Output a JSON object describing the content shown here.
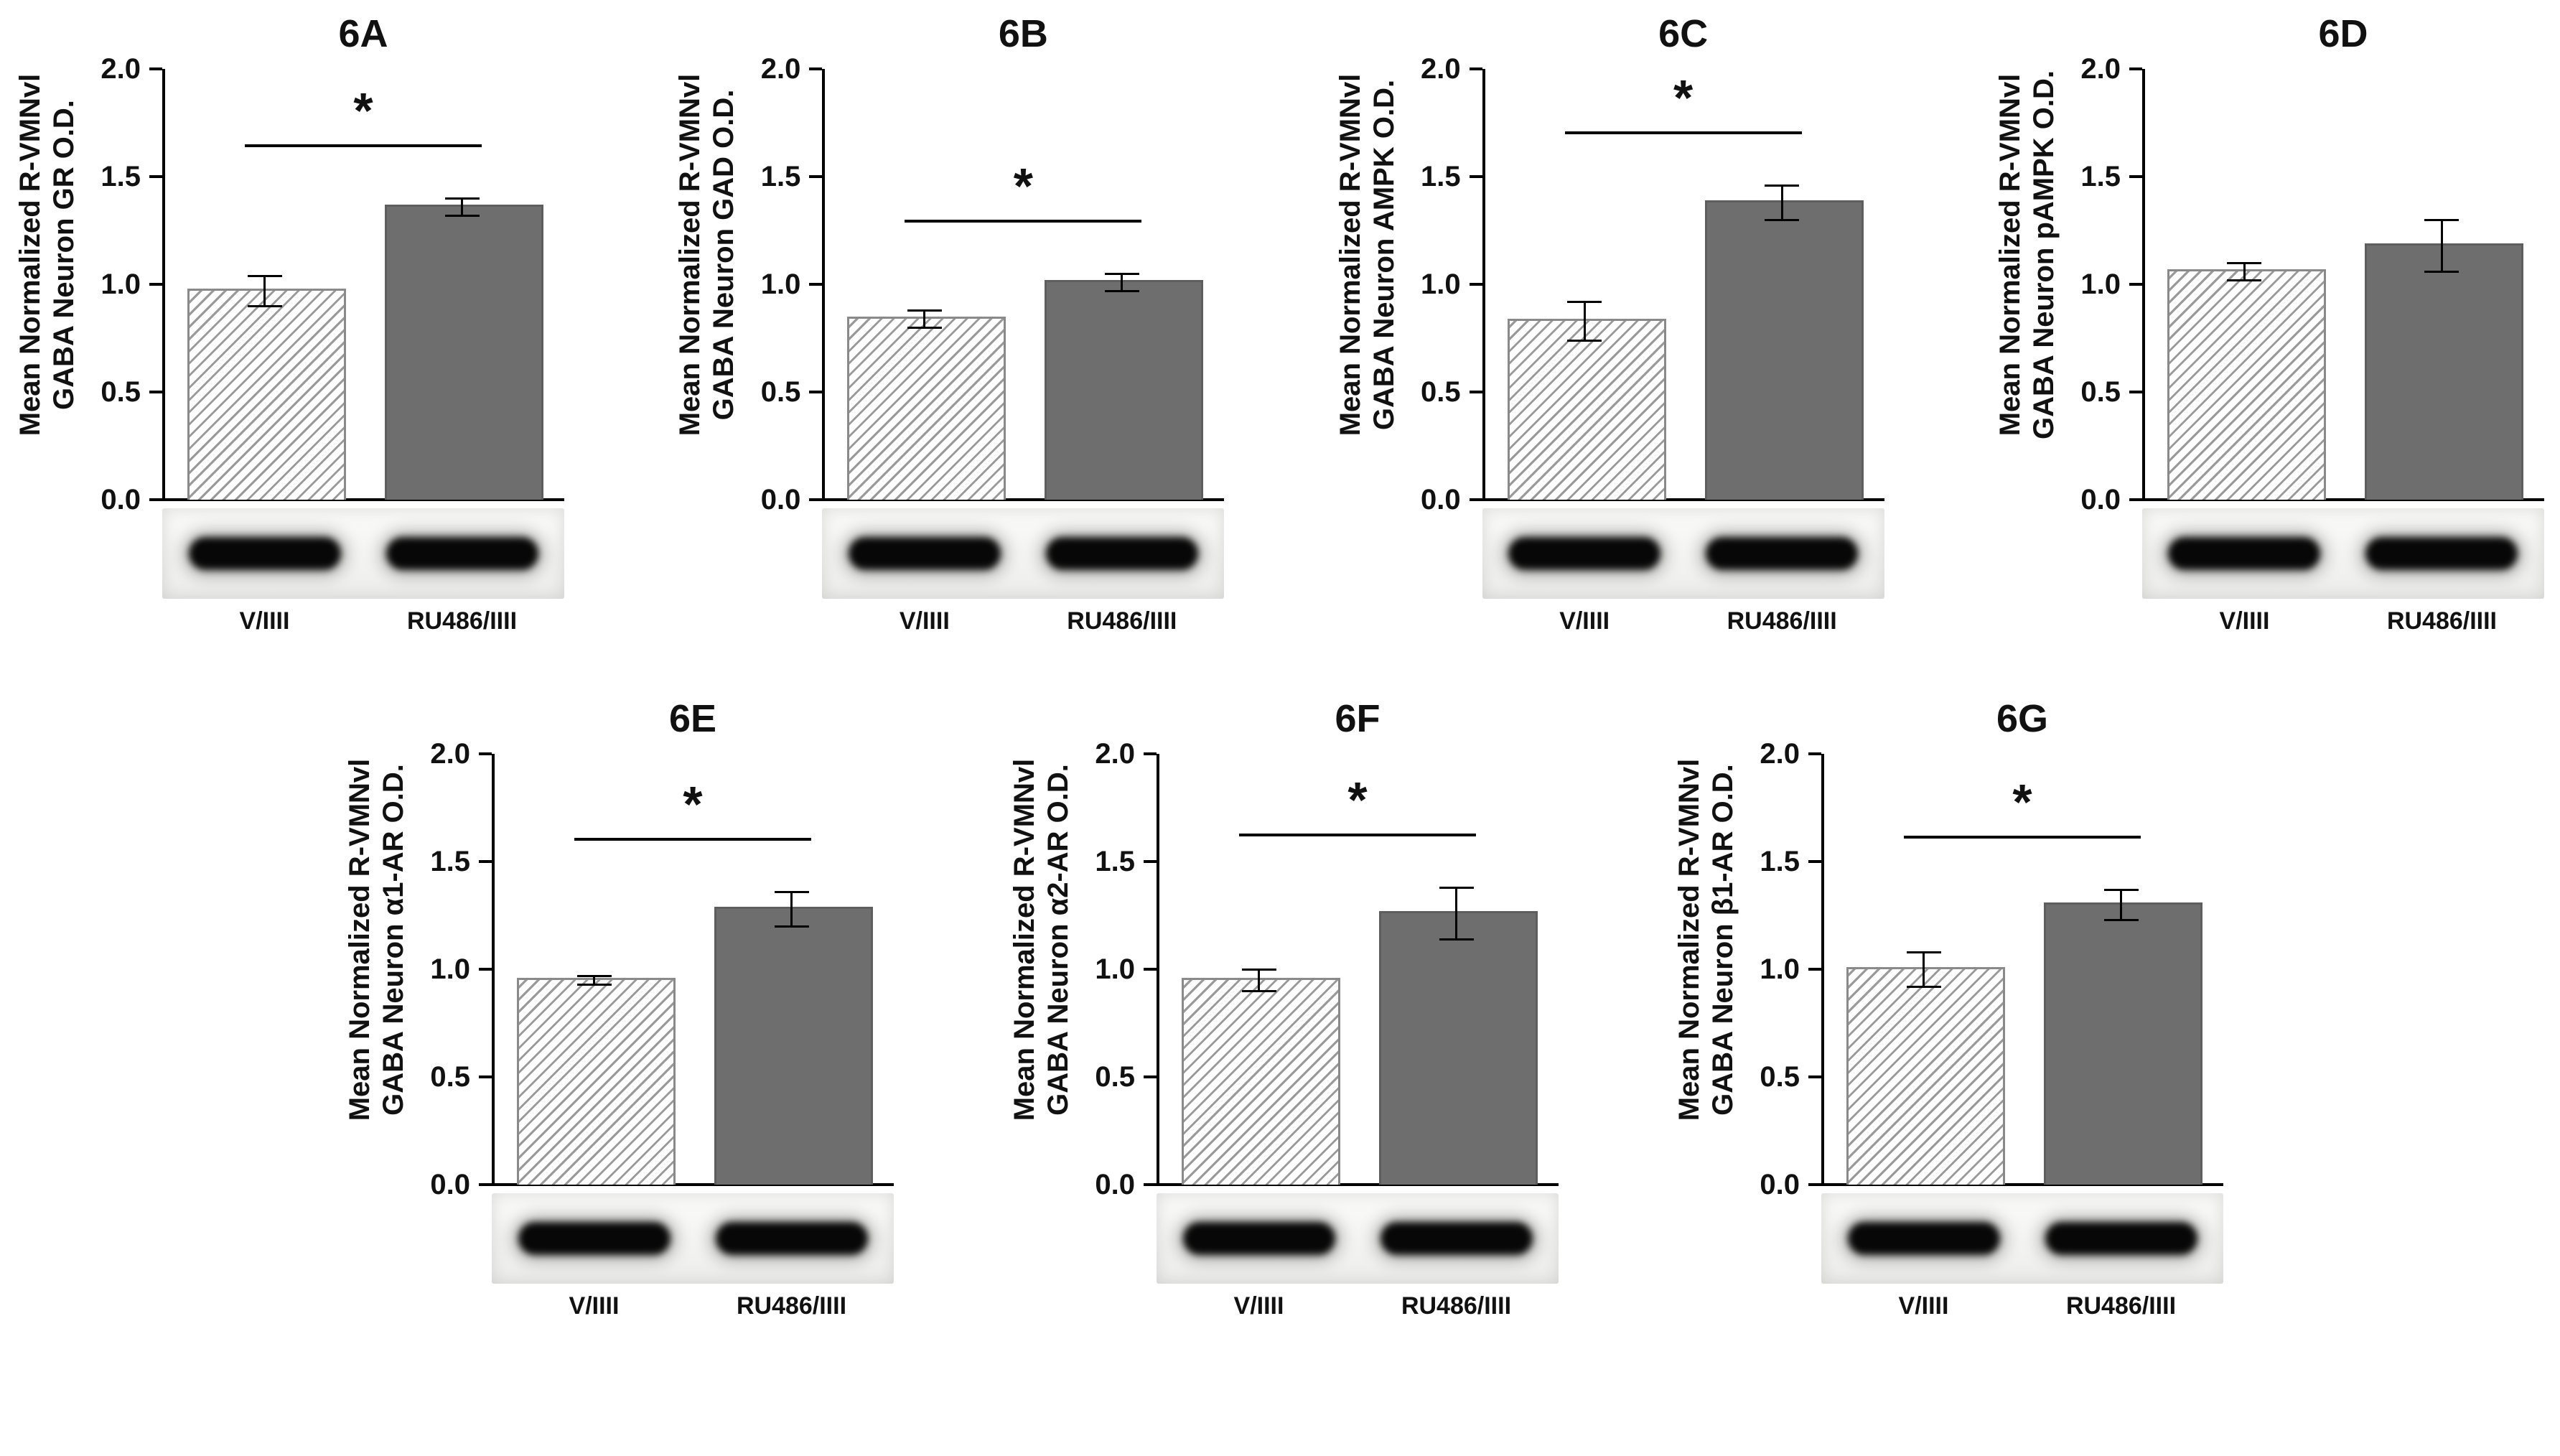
{
  "chart_data": [
    {
      "type": "bar",
      "panel": "6A",
      "title": "6A",
      "ylabel_line1": "Mean Normalized R-VMNvl",
      "ylabel_line2": "GABA Neuron GR O.D.",
      "categories": [
        "V/IIII",
        "RU486/IIII"
      ],
      "values": [
        0.97,
        1.36
      ],
      "errors": [
        0.07,
        0.04
      ],
      "significant": true,
      "sig_label": "*",
      "ylim": [
        0,
        2.0
      ],
      "ytick_labels": [
        "0.0",
        "0.5",
        "1.0",
        "1.5",
        "2.0"
      ],
      "bar_styles": [
        "hatched",
        "solid"
      ],
      "blot_lanes": 2
    },
    {
      "type": "bar",
      "panel": "6B",
      "title": "6B",
      "ylabel_line1": "Mean Normalized R-VMNvl",
      "ylabel_line2": "GABA Neuron GAD O.D.",
      "categories": [
        "V/IIII",
        "RU486/IIII"
      ],
      "values": [
        0.84,
        1.01
      ],
      "errors": [
        0.04,
        0.04
      ],
      "significant": true,
      "sig_label": "*",
      "ylim": [
        0,
        2.0
      ],
      "ytick_labels": [
        "0.0",
        "0.5",
        "1.0",
        "1.5",
        "2.0"
      ],
      "bar_styles": [
        "hatched",
        "solid"
      ],
      "blot_lanes": 2
    },
    {
      "type": "bar",
      "panel": "6C",
      "title": "6C",
      "ylabel_line1": "Mean Normalized R-VMNvl",
      "ylabel_line2": "GABA Neuron AMPK O.D.",
      "categories": [
        "V/IIII",
        "RU486/IIII"
      ],
      "values": [
        0.83,
        1.38
      ],
      "errors": [
        0.09,
        0.08
      ],
      "significant": true,
      "sig_label": "*",
      "ylim": [
        0,
        2.0
      ],
      "ytick_labels": [
        "0.0",
        "0.5",
        "1.0",
        "1.5",
        "2.0"
      ],
      "bar_styles": [
        "hatched",
        "solid"
      ],
      "blot_lanes": 2
    },
    {
      "type": "bar",
      "panel": "6D",
      "title": "6D",
      "ylabel_line1": "Mean Normalized R-VMNvl",
      "ylabel_line2": "GABA Neuron pAMPK O.D.",
      "categories": [
        "V/IIII",
        "RU486/IIII"
      ],
      "values": [
        1.06,
        1.18
      ],
      "errors": [
        0.04,
        0.12
      ],
      "significant": false,
      "sig_label": "",
      "ylim": [
        0,
        2.0
      ],
      "ytick_labels": [
        "0.0",
        "0.5",
        "1.0",
        "1.5",
        "2.0"
      ],
      "bar_styles": [
        "hatched",
        "solid"
      ],
      "blot_lanes": 2
    },
    {
      "type": "bar",
      "panel": "6E",
      "title": "6E",
      "ylabel_line1": "Mean Normalized R-VMNvl",
      "ylabel_line2": "GABA Neuron α1-AR O.D.",
      "categories": [
        "V/IIII",
        "RU486/IIII"
      ],
      "values": [
        0.95,
        1.28
      ],
      "errors": [
        0.02,
        0.08
      ],
      "significant": true,
      "sig_label": "*",
      "ylim": [
        0,
        2.0
      ],
      "ytick_labels": [
        "0.0",
        "0.5",
        "1.0",
        "1.5",
        "2.0"
      ],
      "bar_styles": [
        "hatched",
        "solid"
      ],
      "blot_lanes": 2
    },
    {
      "type": "bar",
      "panel": "6F",
      "title": "6F",
      "ylabel_line1": "Mean Normalized R-VMNvl",
      "ylabel_line2": "GABA Neuron α2-AR O.D.",
      "categories": [
        "V/IIII",
        "RU486/IIII"
      ],
      "values": [
        0.95,
        1.26
      ],
      "errors": [
        0.05,
        0.12
      ],
      "significant": true,
      "sig_label": "*",
      "ylim": [
        0,
        2.0
      ],
      "ytick_labels": [
        "0.0",
        "0.5",
        "1.0",
        "1.5",
        "2.0"
      ],
      "bar_styles": [
        "hatched",
        "solid"
      ],
      "blot_lanes": 2
    },
    {
      "type": "bar",
      "panel": "6G",
      "title": "6G",
      "ylabel_line1": "Mean Normalized R-VMNvl",
      "ylabel_line2": "GABA Neuron β1-AR O.D.",
      "categories": [
        "V/IIII",
        "RU486/IIII"
      ],
      "values": [
        1.0,
        1.3
      ],
      "errors": [
        0.08,
        0.07
      ],
      "significant": true,
      "sig_label": "*",
      "ylim": [
        0,
        2.0
      ],
      "ytick_labels": [
        "0.0",
        "0.5",
        "1.0",
        "1.5",
        "2.0"
      ],
      "bar_styles": [
        "hatched",
        "solid"
      ],
      "blot_lanes": 2
    }
  ]
}
